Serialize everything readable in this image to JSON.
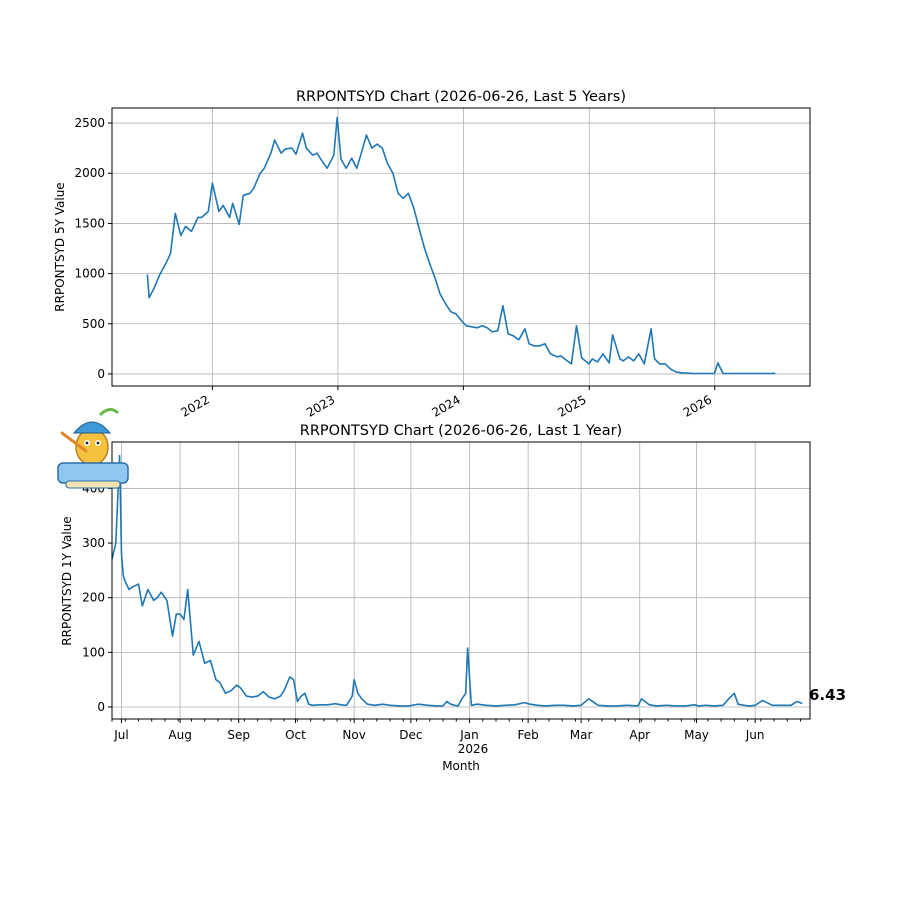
{
  "chart_data": [
    {
      "type": "line",
      "title": "RRPONTSYD Chart (2026-06-26, Last 5 Years)",
      "xlabel": "",
      "ylabel": "RRPONTSYD 5Y Value",
      "x_tick_labels": [
        "2022",
        "2023",
        "2024",
        "2025",
        "2026"
      ],
      "y_ticks": [
        0,
        500,
        1000,
        1500,
        2000,
        2500
      ],
      "xlim": [
        "2021-03-15",
        "2026-10-05"
      ],
      "ylim": [
        -120,
        2650
      ],
      "grid": true,
      "series": [
        {
          "color": "#1f77b4",
          "x": [
            "2021-06-26",
            "2021-07-01",
            "2021-07-15",
            "2021-08-01",
            "2021-08-20",
            "2021-09-01",
            "2021-09-15",
            "2021-10-01",
            "2021-10-15",
            "2021-11-01",
            "2021-11-20",
            "2021-12-01",
            "2021-12-20",
            "2022-01-01",
            "2022-01-20",
            "2022-02-01",
            "2022-02-20",
            "2022-03-01",
            "2022-03-20",
            "2022-04-01",
            "2022-04-20",
            "2022-05-01",
            "2022-05-20",
            "2022-06-01",
            "2022-06-20",
            "2022-07-01",
            "2022-07-20",
            "2022-08-01",
            "2022-08-20",
            "2022-09-01",
            "2022-09-20",
            "2022-10-01",
            "2022-10-20",
            "2022-11-01",
            "2022-11-20",
            "2022-12-01",
            "2022-12-20",
            "2022-12-30",
            "2023-01-10",
            "2023-01-25",
            "2023-02-10",
            "2023-02-25",
            "2023-03-10",
            "2023-03-25",
            "2023-04-10",
            "2023-04-25",
            "2023-05-10",
            "2023-05-25",
            "2023-06-10",
            "2023-06-25",
            "2023-07-10",
            "2023-07-25",
            "2023-08-10",
            "2023-08-25",
            "2023-09-10",
            "2023-09-25",
            "2023-10-10",
            "2023-10-25",
            "2023-11-10",
            "2023-11-25",
            "2023-12-10",
            "2023-12-29",
            "2024-01-10",
            "2024-01-25",
            "2024-02-10",
            "2024-02-25",
            "2024-03-10",
            "2024-03-25",
            "2024-04-10",
            "2024-04-25",
            "2024-05-10",
            "2024-05-25",
            "2024-06-10",
            "2024-06-28",
            "2024-07-10",
            "2024-07-25",
            "2024-08-10",
            "2024-08-25",
            "2024-09-10",
            "2024-09-30",
            "2024-10-10",
            "2024-10-25",
            "2024-11-10",
            "2024-11-25",
            "2024-12-10",
            "2024-12-31",
            "2025-01-10",
            "2025-01-25",
            "2025-02-10",
            "2025-02-28",
            "2025-03-10",
            "2025-03-31",
            "2025-04-10",
            "2025-04-25",
            "2025-05-10",
            "2025-05-25",
            "2025-06-10",
            "2025-06-30",
            "2025-07-10",
            "2025-07-25",
            "2025-08-10",
            "2025-08-25",
            "2025-09-10",
            "2025-09-30",
            "2025-10-10",
            "2025-10-31",
            "2025-11-10",
            "2025-11-25",
            "2025-12-10",
            "2025-12-31",
            "2026-01-10",
            "2026-01-25",
            "2026-02-10",
            "2026-02-25",
            "2026-03-10",
            "2026-03-25",
            "2026-04-10",
            "2026-04-25",
            "2026-05-10",
            "2026-05-25",
            "2026-06-10",
            "2026-06-26"
          ],
          "y": [
            991,
            760,
            850,
            990,
            1110,
            1200,
            1600,
            1380,
            1470,
            1420,
            1560,
            1560,
            1620,
            1900,
            1620,
            1680,
            1560,
            1700,
            1490,
            1780,
            1800,
            1850,
            2000,
            2050,
            2200,
            2330,
            2200,
            2240,
            2250,
            2190,
            2400,
            2250,
            2180,
            2200,
            2100,
            2050,
            2180,
            2554,
            2140,
            2050,
            2150,
            2050,
            2200,
            2380,
            2250,
            2290,
            2250,
            2100,
            2000,
            1800,
            1750,
            1800,
            1650,
            1450,
            1250,
            1100,
            960,
            800,
            700,
            620,
            600,
            520,
            480,
            470,
            460,
            480,
            460,
            420,
            430,
            680,
            400,
            380,
            340,
            450,
            300,
            280,
            280,
            300,
            200,
            170,
            180,
            140,
            100,
            480,
            160,
            100,
            150,
            120,
            200,
            110,
            390,
            150,
            130,
            170,
            130,
            200,
            100,
            450,
            150,
            100,
            100,
            50,
            20,
            10,
            10,
            5,
            5,
            5,
            5,
            5,
            110,
            5,
            5,
            5,
            5,
            5,
            5,
            5,
            5,
            5,
            5,
            6.43
          ]
        }
      ]
    },
    {
      "type": "line",
      "title": "RRPONTSYD Chart (2026-06-26, Last 1 Year)",
      "xlabel": "Month",
      "ylabel": "RRPONTSYD 1Y Value",
      "x_tick_labels": [
        "Jul",
        "Aug",
        "Sep",
        "Oct",
        "Nov",
        "Dec",
        "Jan",
        "Feb",
        "Mar",
        "Apr",
        "May",
        "Jun"
      ],
      "x_tick_sublabel": "2026",
      "y_ticks": [
        0,
        100,
        200,
        300,
        400
      ],
      "xlim": [
        "2025-06-26",
        "2026-06-30"
      ],
      "ylim": [
        -22,
        485
      ],
      "grid": true,
      "last_value_label": "6.43",
      "series": [
        {
          "color": "#1f77b4",
          "x": [
            "2025-06-26",
            "2025-06-28",
            "2025-06-30",
            "2025-07-01",
            "2025-07-02",
            "2025-07-03",
            "2025-07-05",
            "2025-07-07",
            "2025-07-10",
            "2025-07-12",
            "2025-07-15",
            "2025-07-18",
            "2025-07-20",
            "2025-07-22",
            "2025-07-25",
            "2025-07-28",
            "2025-07-30",
            "2025-08-01",
            "2025-08-03",
            "2025-08-05",
            "2025-08-08",
            "2025-08-11",
            "2025-08-14",
            "2025-08-17",
            "2025-08-20",
            "2025-08-22",
            "2025-08-25",
            "2025-08-28",
            "2025-08-31",
            "2025-09-02",
            "2025-09-05",
            "2025-09-08",
            "2025-09-11",
            "2025-09-14",
            "2025-09-17",
            "2025-09-20",
            "2025-09-23",
            "2025-09-25",
            "2025-09-28",
            "2025-09-30",
            "2025-10-02",
            "2025-10-04",
            "2025-10-06",
            "2025-10-08",
            "2025-10-10",
            "2025-10-14",
            "2025-10-18",
            "2025-10-22",
            "2025-10-25",
            "2025-10-28",
            "2025-10-31",
            "2025-11-01",
            "2025-11-03",
            "2025-11-05",
            "2025-11-08",
            "2025-11-12",
            "2025-11-16",
            "2025-11-20",
            "2025-11-25",
            "2025-11-30",
            "2025-12-05",
            "2025-12-10",
            "2025-12-15",
            "2025-12-18",
            "2025-12-20",
            "2025-12-22",
            "2025-12-24",
            "2025-12-26",
            "2025-12-28",
            "2025-12-30",
            "2025-12-31",
            "2026-01-02",
            "2026-01-05",
            "2026-01-10",
            "2026-01-15",
            "2026-01-20",
            "2026-01-25",
            "2026-01-30",
            "2026-02-02",
            "2026-02-06",
            "2026-02-10",
            "2026-02-15",
            "2026-02-20",
            "2026-02-25",
            "2026-03-01",
            "2026-03-05",
            "2026-03-10",
            "2026-03-15",
            "2026-03-20",
            "2026-03-25",
            "2026-03-31",
            "2026-04-02",
            "2026-04-06",
            "2026-04-10",
            "2026-04-15",
            "2026-04-20",
            "2026-04-25",
            "2026-04-30",
            "2026-05-02",
            "2026-05-06",
            "2026-05-10",
            "2026-05-15",
            "2026-05-18",
            "2026-05-21",
            "2026-05-23",
            "2026-05-26",
            "2026-05-29",
            "2026-06-01",
            "2026-06-05",
            "2026-06-10",
            "2026-06-15",
            "2026-06-20",
            "2026-06-23",
            "2026-06-26"
          ],
          "y": [
            270,
            300,
            460,
            280,
            240,
            230,
            215,
            220,
            225,
            185,
            215,
            195,
            200,
            210,
            195,
            130,
            170,
            170,
            160,
            215,
            95,
            120,
            80,
            85,
            50,
            45,
            25,
            30,
            40,
            35,
            20,
            18,
            20,
            28,
            18,
            15,
            20,
            30,
            55,
            50,
            10,
            20,
            25,
            5,
            3,
            4,
            4,
            6,
            4,
            3,
            20,
            50,
            25,
            15,
            5,
            3,
            5,
            3,
            2,
            2,
            5,
            3,
            2,
            2,
            10,
            5,
            3,
            2,
            15,
            25,
            108,
            3,
            5,
            3,
            2,
            3,
            4,
            8,
            5,
            3,
            2,
            3,
            3,
            2,
            3,
            15,
            3,
            2,
            2,
            3,
            2,
            15,
            4,
            2,
            3,
            2,
            2,
            4,
            2,
            3,
            2,
            3,
            15,
            25,
            5,
            3,
            2,
            3,
            12,
            3,
            3,
            3,
            10,
            6.43
          ]
        }
      ]
    }
  ]
}
